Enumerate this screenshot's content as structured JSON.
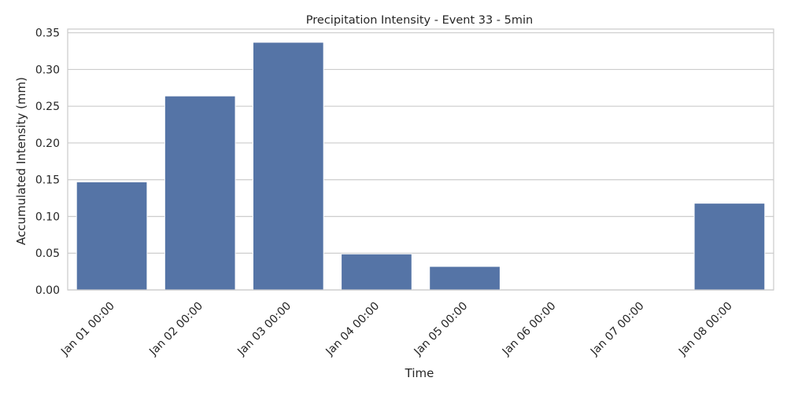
{
  "chart_data": {
    "type": "bar",
    "title": "Precipitation Intensity - Event 33 - 5min",
    "xlabel": "Time",
    "ylabel": "Accumulated Intensity (mm)",
    "categories": [
      "Jan 01 00:00",
      "Jan 02 00:00",
      "Jan 03 00:00",
      "Jan 04 00:00",
      "Jan 05 00:00",
      "Jan 06 00:00",
      "Jan 07 00:00",
      "Jan 08 00:00"
    ],
    "values": [
      0.147,
      0.264,
      0.337,
      0.049,
      0.032,
      0.0,
      0.0,
      0.118
    ],
    "ylim": [
      0,
      0.355
    ],
    "yticks": [
      0.0,
      0.05,
      0.1,
      0.15,
      0.2,
      0.25,
      0.3,
      0.35
    ],
    "ytick_labels": [
      "0.00",
      "0.05",
      "0.10",
      "0.15",
      "0.20",
      "0.25",
      "0.30",
      "0.35"
    ],
    "grid": true,
    "bar_color": "#5574a6",
    "grid_color": "#cccccc",
    "frame_color": "#cccccc"
  }
}
